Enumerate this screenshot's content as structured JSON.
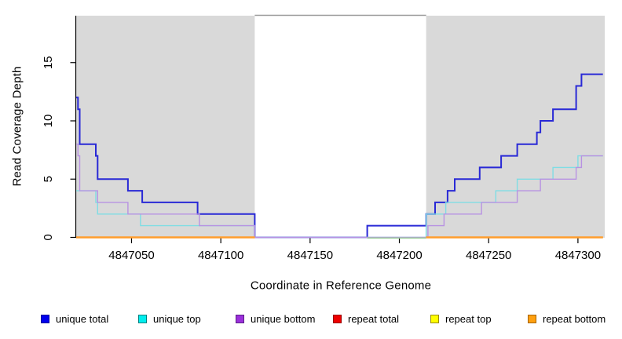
{
  "figure": {
    "ylabel": "Read Coverage Depth",
    "xlabel": "Coordinate in Reference Genome",
    "background_color": "#FFFFFF",
    "shaded_band_color": "#D9D9D9",
    "axis_color": "#000000",
    "gap_top_border_color": "#999999"
  },
  "chart_data": {
    "type": "line",
    "subtype": "step",
    "title": "",
    "xlabel": "Coordinate in Reference Genome",
    "ylabel": "Read Coverage Depth",
    "xlim": [
      4847019,
      4847315
    ],
    "ylim": [
      0,
      19
    ],
    "x_ticks": [
      "4847050",
      "4847100",
      "4847150",
      "4847200",
      "4847250",
      "4847300"
    ],
    "x_tick_values": [
      4847050,
      4847100,
      4847150,
      4847200,
      4847250,
      4847300
    ],
    "y_ticks": [
      "0",
      "5",
      "10",
      "15"
    ],
    "y_tick_values": [
      0,
      5,
      10,
      15
    ],
    "grid": false,
    "legend_position": "bottom",
    "shaded_bands": [
      {
        "x1": 4847019,
        "x2": 4847119,
        "color": "#D9D9D9"
      },
      {
        "x1": 4847215,
        "x2": 4847315,
        "color": "#D9D9D9"
      }
    ],
    "white_gap": {
      "x1": 4847119,
      "x2": 4847215,
      "top_border_color": "#999999"
    },
    "series": [
      {
        "name": "unique total",
        "line_color": "#2929D6",
        "line_width": 2,
        "paths": [
          [
            [
              4847019,
              12
            ],
            [
              4847020,
              11
            ],
            [
              4847021,
              8
            ],
            [
              4847030,
              7
            ],
            [
              4847031,
              5
            ],
            [
              4847048,
              4
            ],
            [
              4847056,
              3
            ],
            [
              4847087,
              2
            ],
            [
              4847119,
              0
            ],
            [
              4847182,
              1
            ],
            [
              4847215,
              2
            ],
            [
              4847220,
              3
            ],
            [
              4847227,
              4
            ],
            [
              4847231,
              5
            ],
            [
              4847245,
              6
            ],
            [
              4847257,
              7
            ],
            [
              4847266,
              8
            ],
            [
              4847277,
              9
            ],
            [
              4847279,
              10
            ],
            [
              4847286,
              11
            ],
            [
              4847299,
              13
            ],
            [
              4847302,
              14
            ],
            [
              4847314,
              14
            ]
          ]
        ]
      },
      {
        "name": "unique top",
        "line_color": "#7FDDE4",
        "line_width": 1.4,
        "paths": [
          [
            [
              4847019,
              4
            ],
            [
              4847030,
              3
            ],
            [
              4847031,
              2
            ],
            [
              4847055,
              1
            ],
            [
              4847119,
              0
            ],
            [
              4847215,
              2
            ],
            [
              4847226,
              3
            ],
            [
              4847254,
              4
            ],
            [
              4847266,
              5
            ],
            [
              4847286,
              6
            ],
            [
              4847300,
              7
            ],
            [
              4847314,
              7
            ]
          ]
        ]
      },
      {
        "name": "unique bottom",
        "line_color": "#B892E2",
        "line_width": 1.4,
        "paths": [
          [
            [
              4847019,
              8
            ],
            [
              4847020,
              7
            ],
            [
              4847021,
              4
            ],
            [
              4847031,
              3
            ],
            [
              4847048,
              2
            ],
            [
              4847088,
              1
            ],
            [
              4847119,
              0
            ],
            [
              4847216,
              1
            ],
            [
              4847225,
              2
            ],
            [
              4847246,
              3
            ],
            [
              4847266,
              4
            ],
            [
              4847279,
              5
            ],
            [
              4847299,
              6
            ],
            [
              4847302,
              7
            ],
            [
              4847314,
              7
            ]
          ]
        ]
      },
      {
        "name": "repeat total",
        "line_color": "#DE2010",
        "line_width": 1.4,
        "paths": [
          [
            [
              4847019,
              0
            ],
            [
              4847119,
              0
            ]
          ],
          [
            [
              4847215,
              0
            ],
            [
              4847314,
              0
            ]
          ]
        ]
      },
      {
        "name": "repeat top",
        "line_color": "#EFEF30",
        "line_width": 1.4,
        "paths": [
          [
            [
              4847019,
              0
            ],
            [
              4847119,
              0
            ]
          ],
          [
            [
              4847215,
              0
            ],
            [
              4847314,
              0
            ]
          ]
        ]
      },
      {
        "name": "repeat bottom",
        "line_color": "#FF9D2D",
        "line_width": 2.4,
        "paths": [
          [
            [
              4847019,
              0
            ],
            [
              4847119,
              0
            ]
          ],
          [
            [
              4847215,
              0
            ],
            [
              4847314,
              0
            ]
          ]
        ]
      }
    ],
    "annotations": [
      {
        "type": "hline_segment",
        "x1": 4847182,
        "x2": 4847215,
        "y": 0,
        "color": "#9CCF9C",
        "width": 1.6
      }
    ]
  },
  "legend": {
    "items": [
      {
        "label": "unique total",
        "fill": "#0000EE",
        "border": "#000099"
      },
      {
        "label": "unique top",
        "fill": "#00EEEE",
        "border": "#008080"
      },
      {
        "label": "unique bottom",
        "fill": "#9B30DB",
        "border": "#5B1E87"
      },
      {
        "label": "repeat total",
        "fill": "#EE0000",
        "border": "#990000"
      },
      {
        "label": "repeat top",
        "fill": "#FFFF00",
        "border": "#998A00"
      },
      {
        "label": "repeat bottom",
        "fill": "#FFA010",
        "border": "#A66400"
      }
    ]
  }
}
